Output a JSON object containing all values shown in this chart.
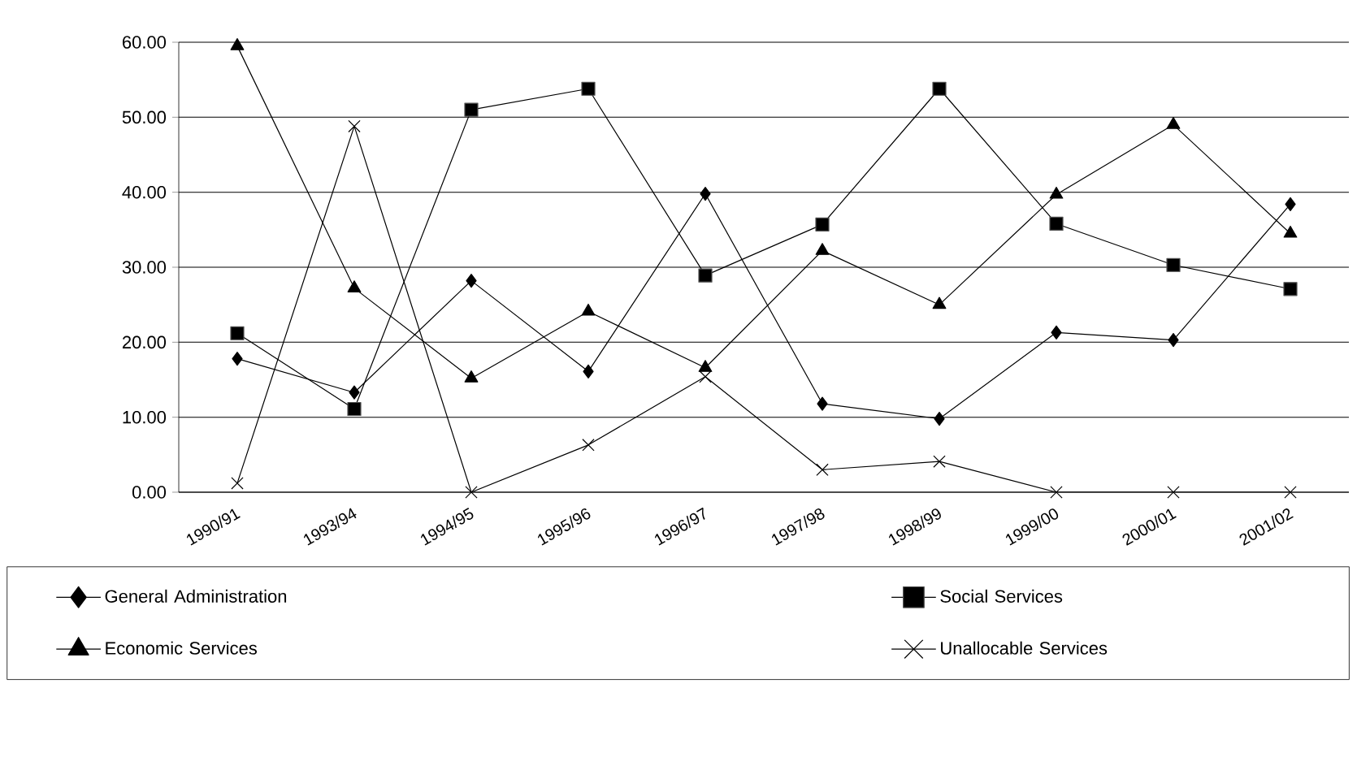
{
  "chart_data": {
    "type": "line",
    "categories": [
      "1990/91",
      "1993/94",
      "1994/95",
      "1995/96",
      "1996/97",
      "1997/98",
      "1998/99",
      "1999/00",
      "2000/01",
      "2001/02"
    ],
    "series": [
      {
        "name": "General Administration",
        "color": "#000000",
        "marker": "diamond",
        "values": [
          17.8,
          13.3,
          28.2,
          16.1,
          39.8,
          11.8,
          9.8,
          21.3,
          20.3,
          38.4
        ]
      },
      {
        "name": "Social Services",
        "color": "#000000",
        "marker": "square",
        "values": [
          21.2,
          11.1,
          51.0,
          53.8,
          28.9,
          35.7,
          53.8,
          35.8,
          30.3,
          27.1
        ]
      },
      {
        "name": "Economic Services",
        "color": "#000000",
        "marker": "triangle",
        "values": [
          59.5,
          27.2,
          15.2,
          24.1,
          16.6,
          32.2,
          25.0,
          39.7,
          49.0,
          34.5
        ]
      },
      {
        "name": "Unallocable Services",
        "color": "#000000",
        "marker": "cross",
        "values": [
          1.2,
          48.8,
          0,
          6.3,
          15.4,
          3.0,
          4.1,
          0,
          0,
          0
        ]
      }
    ],
    "ylim": [
      0,
      60
    ],
    "yticks": [
      {
        "value": 0,
        "label": "0.00"
      },
      {
        "value": 10,
        "label": "10.00"
      },
      {
        "value": 20,
        "label": "20.00"
      },
      {
        "value": 30,
        "label": "30.00"
      },
      {
        "value": 40,
        "label": "40.00"
      },
      {
        "value": 50,
        "label": "50.00"
      },
      {
        "value": 60,
        "label": "60.00"
      }
    ],
    "grid": "y",
    "legend": "bottom",
    "line_style": "solid"
  }
}
